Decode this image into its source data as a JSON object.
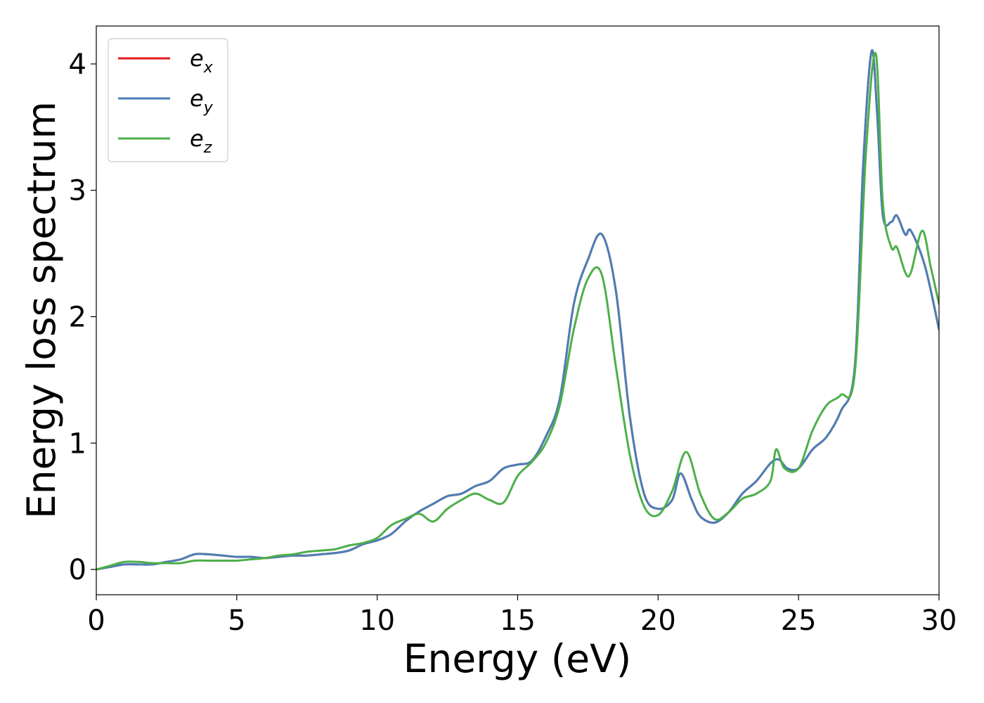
{
  "chart_data": {
    "type": "line",
    "title": "",
    "xlabel": "Energy (eV)",
    "ylabel": "Energy loss spectrum",
    "xlim": [
      0,
      30
    ],
    "ylim": [
      -0.2,
      4.3
    ],
    "xticks": [
      0,
      5,
      10,
      15,
      20,
      25,
      30
    ],
    "yticks": [
      0,
      1,
      2,
      3,
      4
    ],
    "grid": false,
    "legend_position": "top-left",
    "series": [
      {
        "name": "e_x",
        "legend_base": "e",
        "legend_sub": "x",
        "color": "#e41a1c",
        "x": [
          0,
          0.5,
          1,
          1.5,
          2,
          2.5,
          3,
          3.5,
          4,
          4.5,
          5,
          5.5,
          6,
          6.5,
          7,
          7.5,
          8,
          8.5,
          9,
          9.5,
          10,
          10.5,
          11,
          11.5,
          12,
          12.5,
          13,
          13.5,
          14,
          14.5,
          15,
          15.5,
          16,
          16.5,
          17,
          17.5,
          18,
          18.5,
          19,
          19.5,
          20,
          20.5,
          20.8,
          21.2,
          21.5,
          22,
          22.5,
          23,
          23.5,
          24,
          24.3,
          24.6,
          25,
          25.5,
          26,
          26.5,
          27,
          27.3,
          27.6,
          27.8,
          28,
          28.3,
          28.5,
          28.8,
          29,
          29.5,
          30
        ],
        "values": [
          0,
          0.02,
          0.04,
          0.04,
          0.04,
          0.06,
          0.08,
          0.12,
          0.12,
          0.11,
          0.1,
          0.1,
          0.09,
          0.1,
          0.11,
          0.11,
          0.12,
          0.13,
          0.15,
          0.2,
          0.23,
          0.28,
          0.38,
          0.46,
          0.52,
          0.58,
          0.6,
          0.66,
          0.7,
          0.8,
          0.83,
          0.86,
          1.05,
          1.35,
          2.1,
          2.45,
          2.65,
          2.2,
          1.2,
          0.6,
          0.48,
          0.55,
          0.76,
          0.55,
          0.42,
          0.37,
          0.45,
          0.6,
          0.7,
          0.84,
          0.87,
          0.8,
          0.8,
          0.95,
          1.05,
          1.25,
          1.6,
          3.2,
          4.1,
          3.6,
          2.8,
          2.75,
          2.8,
          2.65,
          2.68,
          2.4,
          1.9
        ]
      },
      {
        "name": "e_y",
        "legend_base": "e",
        "legend_sub": "y",
        "color": "#4a7fb6",
        "x": [
          0,
          0.5,
          1,
          1.5,
          2,
          2.5,
          3,
          3.5,
          4,
          4.5,
          5,
          5.5,
          6,
          6.5,
          7,
          7.5,
          8,
          8.5,
          9,
          9.5,
          10,
          10.5,
          11,
          11.5,
          12,
          12.5,
          13,
          13.5,
          14,
          14.5,
          15,
          15.5,
          16,
          16.5,
          17,
          17.5,
          18,
          18.5,
          19,
          19.5,
          20,
          20.5,
          20.8,
          21.2,
          21.5,
          22,
          22.5,
          23,
          23.5,
          24,
          24.3,
          24.6,
          25,
          25.5,
          26,
          26.5,
          27,
          27.3,
          27.6,
          27.8,
          28,
          28.3,
          28.5,
          28.8,
          29,
          29.5,
          30
        ],
        "values": [
          0,
          0.02,
          0.04,
          0.04,
          0.04,
          0.06,
          0.08,
          0.12,
          0.12,
          0.11,
          0.1,
          0.1,
          0.09,
          0.1,
          0.11,
          0.11,
          0.12,
          0.13,
          0.15,
          0.2,
          0.23,
          0.28,
          0.38,
          0.46,
          0.52,
          0.58,
          0.6,
          0.66,
          0.7,
          0.8,
          0.83,
          0.86,
          1.05,
          1.35,
          2.1,
          2.45,
          2.65,
          2.2,
          1.2,
          0.6,
          0.48,
          0.55,
          0.76,
          0.55,
          0.42,
          0.37,
          0.45,
          0.6,
          0.7,
          0.84,
          0.87,
          0.8,
          0.8,
          0.95,
          1.05,
          1.25,
          1.6,
          3.2,
          4.1,
          3.6,
          2.8,
          2.75,
          2.8,
          2.65,
          2.68,
          2.4,
          1.9
        ]
      },
      {
        "name": "e_z",
        "legend_base": "e",
        "legend_sub": "z",
        "color": "#4daf4a",
        "x": [
          0,
          0.5,
          1,
          1.5,
          2,
          2.5,
          3,
          3.5,
          4,
          4.5,
          5,
          5.5,
          6,
          6.5,
          7,
          7.5,
          8,
          8.5,
          9,
          9.5,
          10,
          10.5,
          11,
          11.5,
          12,
          12.5,
          13,
          13.5,
          14,
          14.5,
          15,
          15.5,
          16,
          16.5,
          17,
          17.5,
          18,
          18.5,
          19,
          19.5,
          20,
          20.5,
          21,
          21.5,
          22,
          22.5,
          23,
          23.5,
          24,
          24.2,
          24.5,
          25,
          25.5,
          26,
          26.5,
          27,
          27.4,
          27.75,
          28,
          28.3,
          28.5,
          28.8,
          29,
          29.4,
          29.7,
          30
        ],
        "values": [
          0,
          0.03,
          0.06,
          0.06,
          0.05,
          0.05,
          0.05,
          0.07,
          0.07,
          0.07,
          0.07,
          0.08,
          0.09,
          0.11,
          0.12,
          0.14,
          0.15,
          0.16,
          0.19,
          0.21,
          0.25,
          0.35,
          0.4,
          0.44,
          0.38,
          0.48,
          0.55,
          0.6,
          0.55,
          0.53,
          0.74,
          0.85,
          1.0,
          1.3,
          1.9,
          2.3,
          2.33,
          1.6,
          0.9,
          0.5,
          0.43,
          0.62,
          0.93,
          0.6,
          0.4,
          0.45,
          0.56,
          0.6,
          0.7,
          0.95,
          0.8,
          0.8,
          1.1,
          1.3,
          1.38,
          1.55,
          3.3,
          4.08,
          2.9,
          2.55,
          2.55,
          2.35,
          2.35,
          2.68,
          2.4,
          2.1
        ]
      }
    ]
  }
}
